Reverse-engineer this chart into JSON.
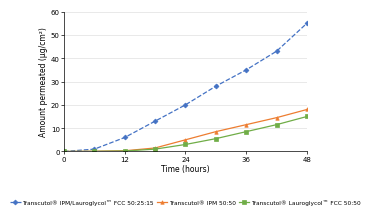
{
  "title": "",
  "xlabel": "Time (hours)",
  "ylabel": "Amount permeated (μg/cm²)",
  "xlim": [
    0,
    48
  ],
  "ylim": [
    0,
    60
  ],
  "xticks": [
    0,
    12,
    24,
    36,
    48
  ],
  "yticks": [
    0,
    10,
    20,
    30,
    40,
    50,
    60
  ],
  "series": [
    {
      "label": "Transcutol® IPM/Lauroglycol™ FCC 50:25:15",
      "x": [
        0,
        6,
        12,
        18,
        24,
        30,
        36,
        42,
        48
      ],
      "y": [
        0,
        1.0,
        6.0,
        13.0,
        20.0,
        28.0,
        35.0,
        43.0,
        55.0
      ],
      "color": "#4472C4",
      "marker": "D",
      "linestyle": "--",
      "linewidth": 0.9,
      "markersize": 2.5
    },
    {
      "label": "Transcutol® IPM 50:50",
      "x": [
        0,
        6,
        12,
        18,
        24,
        30,
        36,
        42,
        48
      ],
      "y": [
        0,
        0.1,
        0.3,
        1.5,
        5.0,
        8.5,
        11.5,
        14.5,
        18.0
      ],
      "color": "#ED7D31",
      "marker": "^",
      "linestyle": "-",
      "linewidth": 0.9,
      "markersize": 2.5
    },
    {
      "label": "Transcutol® Lauroglycol™ FCC 50:50",
      "x": [
        0,
        6,
        12,
        18,
        24,
        30,
        36,
        42,
        48
      ],
      "y": [
        0,
        0.05,
        0.2,
        1.0,
        3.0,
        5.5,
        8.5,
        11.5,
        15.0
      ],
      "color": "#70AD47",
      "marker": "s",
      "linestyle": "-",
      "linewidth": 0.9,
      "markersize": 2.5
    }
  ],
  "legend_fontsize": 4.2,
  "axis_label_fontsize": 5.5,
  "tick_fontsize": 5.0,
  "background_color": "#FFFFFF",
  "plot_bg_color": "#FFFFFF",
  "grid_color": "#E0E0E0",
  "legend_ncol": 3
}
